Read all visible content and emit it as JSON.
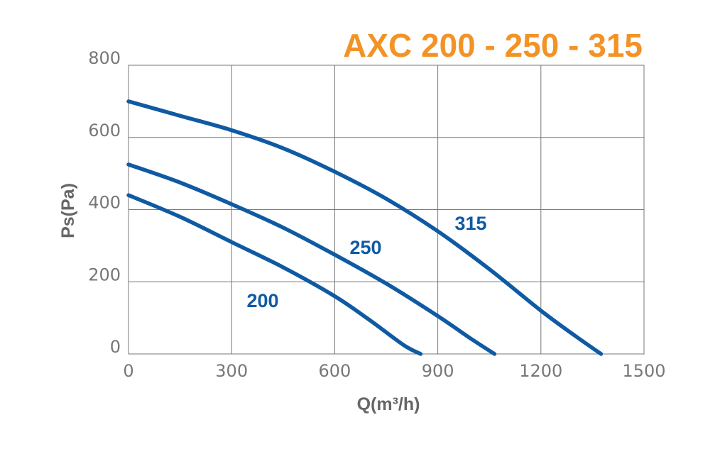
{
  "chart_data": {
    "type": "line",
    "title": "AXC 200 - 250 - 315",
    "xlabel": "Q(m³/h)",
    "ylabel": "Ps(Pa)",
    "xlim": [
      0,
      1500
    ],
    "ylim": [
      0,
      800
    ],
    "x_ticks": [
      "0",
      "300",
      "600",
      "900",
      "1200",
      "1500"
    ],
    "y_ticks": [
      "0",
      "200",
      "400",
      "600",
      "800"
    ],
    "grid": true,
    "series": [
      {
        "name": "200",
        "x": [
          0,
          150,
          300,
          450,
          600,
          700,
          800,
          850
        ],
        "y": [
          440,
          380,
          310,
          240,
          160,
          95,
          25,
          0
        ]
      },
      {
        "name": "250",
        "x": [
          0,
          150,
          300,
          450,
          600,
          750,
          900,
          1000,
          1065
        ],
        "y": [
          525,
          475,
          415,
          350,
          275,
          195,
          105,
          40,
          0
        ]
      },
      {
        "name": "315",
        "x": [
          0,
          150,
          300,
          450,
          600,
          750,
          900,
          1050,
          1200,
          1300,
          1375
        ],
        "y": [
          700,
          660,
          620,
          570,
          505,
          430,
          340,
          235,
          120,
          50,
          0
        ]
      }
    ],
    "colors": {
      "title": "#F39325",
      "series": "#0F5AA3",
      "series_label": "#0F5AA3",
      "grid": "#777777",
      "tick": "#777777",
      "axis_label": "#666666"
    }
  }
}
